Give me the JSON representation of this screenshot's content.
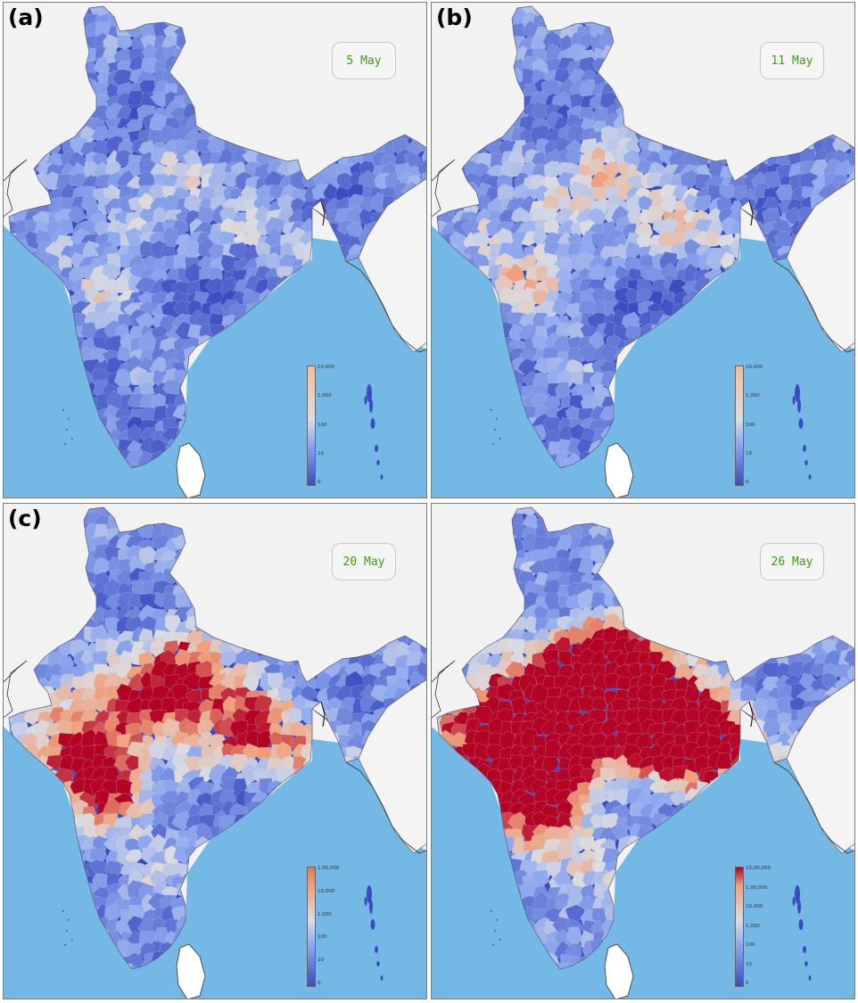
{
  "panels": [
    {
      "label": "(a)",
      "date": "5 May",
      "legend_ticks": [
        "10,000",
        "1,000",
        "100",
        "10",
        "0"
      ],
      "colorbar_top": "#f2bb94",
      "intensity": 0.0
    },
    {
      "label": "(b)",
      "date": "11 May",
      "legend_ticks": [
        "10,000",
        "1,000",
        "100",
        "10",
        "0"
      ],
      "colorbar_top": "#f2bb94",
      "intensity": 0.15
    },
    {
      "label": "(c)",
      "date": "20 May",
      "legend_ticks": [
        "1,00,000",
        "10,000",
        "1,000",
        "100",
        "10",
        "0"
      ],
      "colorbar_top": "#e07a5c",
      "intensity": 0.5
    },
    {
      "label": "",
      "date": "26 May",
      "legend_ticks": [
        "10,00,000",
        "1,00,000",
        "10,000",
        "1,000",
        "100",
        "10",
        "0"
      ],
      "colorbar_top": "#b40426",
      "intensity": 0.85
    }
  ],
  "colors": {
    "sea": "#74b8e6",
    "land": "#f2f2f2",
    "low": "#3b4cc0",
    "mid": "#8fa9ee",
    "neutral": "#dcdde1",
    "high": "#f0a07a",
    "max": "#b40426"
  }
}
